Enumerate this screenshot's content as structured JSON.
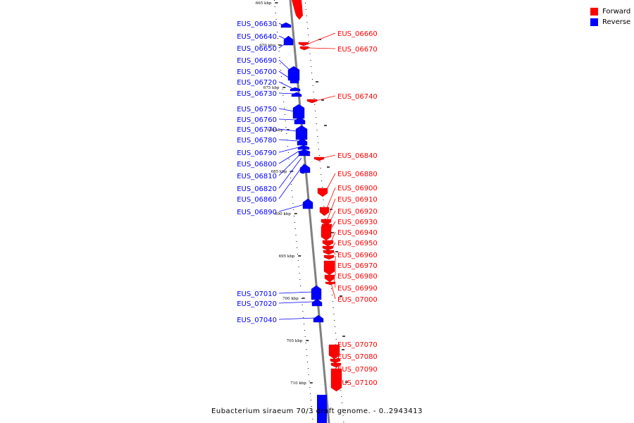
{
  "title": "Eubacterium siraeum 70/3 draft genome. - 0..2943413",
  "legend": {
    "forward": {
      "label": "Forward",
      "color": "#ff0000"
    },
    "reverse": {
      "label": "Reverse",
      "color": "#0000ff"
    }
  },
  "scale": {
    "label_suffix": " kbp",
    "ticks": [
      665,
      670,
      675,
      680,
      685,
      690,
      695,
      700,
      705,
      710
    ]
  },
  "genes": {
    "reverse": [
      "EUS_06630",
      "EUS_06640",
      "EUS_06650",
      "EUS_06690",
      "EUS_06700",
      "EUS_06720",
      "EUS_06730",
      "EUS_06750",
      "EUS_06760",
      "EUS_06770",
      "EUS_06780",
      "EUS_06790",
      "EUS_06800",
      "EUS_06810",
      "EUS_06820",
      "EUS_06860",
      "EUS_06890",
      "EUS_07010",
      "EUS_07020",
      "EUS_07040"
    ],
    "forward": [
      "EUS_06660",
      "EUS_06670",
      "EUS_06740",
      "EUS_06840",
      "EUS_06880",
      "EUS_06900",
      "EUS_06910",
      "EUS_06920",
      "EUS_06930",
      "EUS_06940",
      "EUS_06950",
      "EUS_06960",
      "EUS_06970",
      "EUS_06980",
      "EUS_06990",
      "EUS_07000",
      "EUS_07070",
      "EUS_07080",
      "EUS_07090",
      "EUS_07100"
    ]
  }
}
